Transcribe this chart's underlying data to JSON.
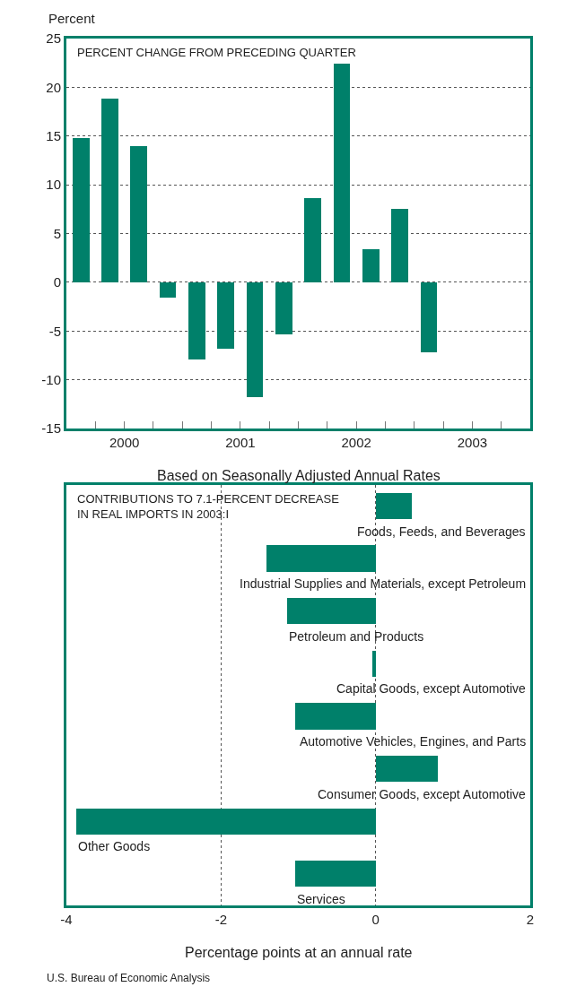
{
  "chart_data": [
    {
      "type": "bar",
      "title": "PERCENT CHANGE FROM PRECEDING QUARTER",
      "ylabel": "Percent",
      "xlabel": "Based on Seasonally Adjusted Annual Rates",
      "x": [
        2000.125,
        2000.375,
        2000.625,
        2000.875,
        2001.125,
        2001.375,
        2001.625,
        2001.875,
        2002.125,
        2002.375,
        2002.625,
        2002.875,
        2003.125
      ],
      "values": [
        14.8,
        18.8,
        14.0,
        -1.6,
        -7.9,
        -6.8,
        -11.8,
        -5.3,
        8.6,
        22.4,
        3.4,
        7.5,
        -7.2
      ],
      "color": "#00806a",
      "xlim": [
        2000,
        2004
      ],
      "xticks": [
        {
          "value": 2000.25,
          "label": null
        },
        {
          "value": 2000.5,
          "label": "2000"
        },
        {
          "value": 2000.75,
          "label": null
        },
        {
          "value": 2001,
          "label": null
        },
        {
          "value": 2001.25,
          "label": null
        },
        {
          "value": 2001.5,
          "label": "2001"
        },
        {
          "value": 2001.75,
          "label": null
        },
        {
          "value": 2002,
          "label": null
        },
        {
          "value": 2002.25,
          "label": null
        },
        {
          "value": 2002.5,
          "label": "2002"
        },
        {
          "value": 2002.75,
          "label": null
        },
        {
          "value": 2003,
          "label": null
        },
        {
          "value": 2003.25,
          "label": null
        },
        {
          "value": 2003.5,
          "label": "2003"
        },
        {
          "value": 2003.75,
          "label": null
        }
      ],
      "ylim": [
        -15,
        25
      ],
      "yticks": [
        -15,
        -10,
        -5,
        0,
        5,
        10,
        15,
        20,
        25
      ],
      "grid": "y"
    },
    {
      "type": "bar",
      "orientation": "horizontal",
      "title": "CONTRIBUTIONS TO 7.1-PERCENT DECREASE\nIN REAL IMPORTS IN 2003:I",
      "xlabel": "Percentage points at an annual rate",
      "categories": [
        "Foods, Feeds, and Beverages",
        "Industrial Supplies and Materials, except Petroleum",
        "Petroleum and Products",
        "Capital Goods, except Automotive",
        "Automotive Vehicles, Engines, and Parts",
        "Consumer Goods, except Automotive",
        "Other Goods",
        "Services"
      ],
      "values": [
        0.47,
        -1.41,
        -1.15,
        -0.04,
        -1.04,
        0.81,
        -3.87,
        -1.04
      ],
      "color": "#00806a",
      "xlim": [
        -4,
        2
      ],
      "xticks": [
        -4,
        -2,
        0,
        2
      ],
      "grid": "x",
      "tick_labels": "x",
      "annotations": [
        "U.S. Bureau of Economic Analysis"
      ]
    }
  ]
}
